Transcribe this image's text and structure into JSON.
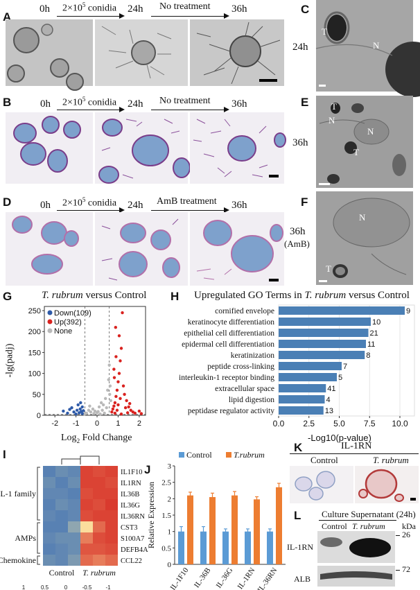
{
  "panels": {
    "A": {
      "letter": "A",
      "t0": "0h",
      "arrow1_label": "2×10",
      "arrow1_sup": "5",
      "arrow1_suffix": " conidia",
      "t1": "24h",
      "arrow2_label": "No treatment",
      "t2": "36h"
    },
    "B": {
      "letter": "B",
      "t0": "0h",
      "arrow1_label": "2×10",
      "arrow1_sup": "5",
      "arrow1_suffix": " conidia",
      "t1": "24h",
      "arrow2_label": "No treatment",
      "t2": "36h"
    },
    "C": {
      "letter": "C",
      "time": "24h",
      "labels": [
        "T",
        "N"
      ]
    },
    "D": {
      "letter": "D",
      "t0": "0h",
      "arrow1_label": "2×10",
      "arrow1_sup": "5",
      "arrow1_suffix": " conidia",
      "t1": "24h",
      "arrow2_label": "AmB treatment",
      "t2": "36h"
    },
    "E": {
      "letter": "E",
      "time": "36h",
      "labels": [
        "T",
        "N",
        "N",
        "T"
      ]
    },
    "F": {
      "letter": "F",
      "time": "36h",
      "time_sub": "(AmB)",
      "labels": [
        "N",
        "T"
      ]
    }
  },
  "volcano": {
    "letter": "G",
    "title_italic": "T. rubrum",
    "title_rest": " versus Control",
    "ylabel": "-lg(padj)",
    "xlabel_main": "Log",
    "xlabel_sub": "2",
    "xlabel_rest": " Fold Change",
    "legend": [
      {
        "label": "Down(109)",
        "color": "#2e5aa8"
      },
      {
        "label": "Up(392)",
        "color": "#d9221f"
      },
      {
        "label": "None",
        "color": "#b9b9b9"
      }
    ],
    "xticks": [
      "-2",
      "-1",
      "0",
      "1",
      "2"
    ],
    "yticks": [
      "0",
      "50",
      "100",
      "150",
      "200",
      "250"
    ]
  },
  "chart_data": [
    {
      "type": "scatter",
      "panel": "G",
      "title": "T. rubrum versus Control",
      "xlabel": "Log2 Fold Change",
      "ylabel": "-lg(padj)",
      "xlim": [
        -2.5,
        2.3
      ],
      "ylim": [
        0,
        260
      ],
      "series": [
        {
          "name": "Down(109)",
          "color": "#2e5aa8",
          "points": [
            [
              -1.6,
              10
            ],
            [
              -1.4,
              5
            ],
            [
              -1.2,
              18
            ],
            [
              -1.1,
              8
            ],
            [
              -0.95,
              12
            ],
            [
              -0.9,
              25
            ],
            [
              -0.85,
              6
            ],
            [
              -0.8,
              15
            ],
            [
              -0.75,
              9
            ],
            [
              -0.7,
              20
            ],
            [
              -0.7,
              4
            ],
            [
              -0.65,
              11
            ],
            [
              -1.0,
              3
            ],
            [
              -1.3,
              14
            ],
            [
              -0.78,
              30
            ]
          ]
        },
        {
          "name": "Up(392)",
          "color": "#d9221f",
          "points": [
            [
              0.7,
              8
            ],
            [
              0.75,
              15
            ],
            [
              0.8,
              22
            ],
            [
              0.85,
              30
            ],
            [
              0.9,
              45
            ],
            [
              0.95,
              60
            ],
            [
              1.0,
              80
            ],
            [
              1.05,
              100
            ],
            [
              1.1,
              130
            ],
            [
              1.15,
              160
            ],
            [
              1.2,
              245
            ],
            [
              1.05,
              190
            ],
            [
              0.9,
              140
            ],
            [
              0.8,
              110
            ],
            [
              1.3,
              50
            ],
            [
              1.4,
              35
            ],
            [
              1.5,
              20
            ],
            [
              1.6,
              12
            ],
            [
              1.7,
              8
            ],
            [
              1.8,
              5
            ],
            [
              2.0,
              10
            ],
            [
              1.25,
              70
            ],
            [
              1.1,
              40
            ],
            [
              1.0,
              25
            ],
            [
              0.95,
              12
            ],
            [
              1.35,
              18
            ],
            [
              1.45,
              6
            ],
            [
              1.55,
              28
            ],
            [
              0.85,
              5
            ],
            [
              1.15,
              3
            ],
            [
              2.1,
              4
            ],
            [
              0.88,
              210
            ],
            [
              0.82,
              90
            ]
          ]
        },
        {
          "name": "None",
          "color": "#b9b9b9",
          "points": [
            [
              -0.5,
              5
            ],
            [
              -0.4,
              12
            ],
            [
              -0.3,
              8
            ],
            [
              -0.2,
              15
            ],
            [
              -0.1,
              10
            ],
            [
              0,
              6
            ],
            [
              0.1,
              20
            ],
            [
              0.2,
              30
            ],
            [
              0.3,
              25
            ],
            [
              0.4,
              40
            ],
            [
              0.5,
              60
            ],
            [
              0.55,
              85
            ],
            [
              0.6,
              50
            ],
            [
              0.65,
              35
            ],
            [
              -0.6,
              3
            ],
            [
              0.25,
              12
            ],
            [
              0.35,
              5
            ],
            [
              0.45,
              18
            ],
            [
              0.15,
              3
            ],
            [
              -0.15,
              4
            ],
            [
              0.58,
              120
            ],
            [
              0.62,
              70
            ],
            [
              -0.35,
              22
            ],
            [
              0.05,
              9
            ]
          ]
        }
      ]
    },
    {
      "type": "bar",
      "panel": "H",
      "title": "Upregulated GO Terms in T. rubrum versus Control",
      "xlabel": "-Log10(p-value)",
      "xticks": [
        "0.0",
        "2.5",
        "5.0",
        "7.5",
        "10.0"
      ],
      "xlim": [
        0,
        11.2
      ],
      "categories": [
        "cornified envelope",
        "keratinocyte differentiation",
        "epithelial cell differentiation",
        "epidermal cell differentiation",
        "keratinization",
        "peptide cross-linking",
        "interleukin-1 receptor binding",
        "extracellular space",
        "lipid digestion",
        "peptidase regulator activity"
      ],
      "values": [
        10.4,
        7.6,
        7.4,
        7.2,
        7.1,
        5.2,
        4.8,
        3.9,
        3.8,
        3.7
      ],
      "data_labels": [
        "9",
        "10",
        "21",
        "11",
        "8",
        "7",
        "5",
        "41",
        "4",
        "13"
      ],
      "color": "#4a7fb5"
    },
    {
      "type": "heatmap",
      "panel": "I",
      "columns": [
        "Control",
        "T. rubrum"
      ],
      "rows": [
        "IL1F10",
        "IL1RN",
        "IL36B",
        "IL36G",
        "IL36RN",
        "CST3",
        "S100A7",
        "DEFB4A",
        "CCL22"
      ],
      "groups": [
        {
          "label": "IL-1 family",
          "rows": 5
        },
        {
          "label": "AMPs",
          "rows": 3
        },
        {
          "label": "Chemokine",
          "rows": 1
        }
      ],
      "values": [
        [
          -0.9,
          -0.8,
          -0.85,
          0.9,
          0.85,
          0.9
        ],
        [
          -0.8,
          -0.9,
          -0.8,
          0.9,
          0.9,
          0.85
        ],
        [
          -0.85,
          -0.85,
          -0.9,
          0.85,
          0.9,
          0.9
        ],
        [
          -0.9,
          -0.8,
          -0.85,
          0.9,
          0.85,
          0.95
        ],
        [
          -0.85,
          -0.9,
          -0.85,
          0.85,
          0.9,
          0.9
        ],
        [
          -0.9,
          -0.9,
          -0.6,
          0.1,
          0.7,
          0.9
        ],
        [
          -0.85,
          -0.8,
          -0.8,
          0.6,
          0.85,
          0.9
        ],
        [
          -0.9,
          -0.85,
          -0.8,
          0.8,
          0.8,
          0.85
        ],
        [
          -0.8,
          -0.85,
          -0.7,
          0.7,
          0.6,
          0.7
        ]
      ],
      "legend_ticks": [
        "1",
        "0.5",
        "0",
        "-0.5",
        "-1"
      ]
    },
    {
      "type": "bar",
      "panel": "J",
      "ylabel": "Relative Expression",
      "ylim": [
        0,
        3
      ],
      "yticks": [
        "0",
        "0.5",
        "1",
        "1.5",
        "2",
        "2.5",
        "3"
      ],
      "categories": [
        "IL-1F10",
        "IL-36B",
        "IL-36G",
        "IL-1RN",
        "IL-36RN"
      ],
      "series": [
        {
          "name": "Control",
          "color": "#5b9bd5",
          "values": [
            1.0,
            1.0,
            1.0,
            1.0,
            1.0
          ],
          "errors": [
            0.15,
            0.15,
            0.08,
            0.08,
            0.08
          ]
        },
        {
          "name": "T.rubrum",
          "color": "#ed7d31",
          "values": [
            2.1,
            2.05,
            2.1,
            1.98,
            2.35
          ],
          "errors": [
            0.1,
            0.12,
            0.12,
            0.08,
            0.12
          ]
        }
      ]
    }
  ],
  "go": {
    "letter": "H",
    "title_pre": "Upregulated GO Terms in ",
    "title_italic": "T. rubrum",
    "title_post": " versus Control",
    "xlabel": "-Log10(p-value)"
  },
  "heat": {
    "letter": "I",
    "col_control": "Control",
    "col_trubrum": "T. rubrum",
    "groups": [
      "IL-1 family",
      "AMPs",
      "Chemokine"
    ],
    "legend_ticks": [
      "1",
      "0.5",
      "0",
      "-0.5",
      "-1"
    ]
  },
  "qpcr": {
    "letter": "J",
    "ylabel": "Relative Expression",
    "legend_control": "Control",
    "legend_trubrum": "T.rubrum"
  },
  "ihc": {
    "letter": "K",
    "header": "IL-1RN",
    "col_control": "Control",
    "col_trubrum": "T. rubrum"
  },
  "western": {
    "letter": "L",
    "header": "Culture Supernatant (24h)",
    "col_control": "Control",
    "col_trubrum": "T. rubrum",
    "unit": "kDa",
    "rows": [
      {
        "label": "IL-1RN",
        "kda": "26"
      },
      {
        "label": "ALB",
        "kda": "72"
      }
    ]
  }
}
